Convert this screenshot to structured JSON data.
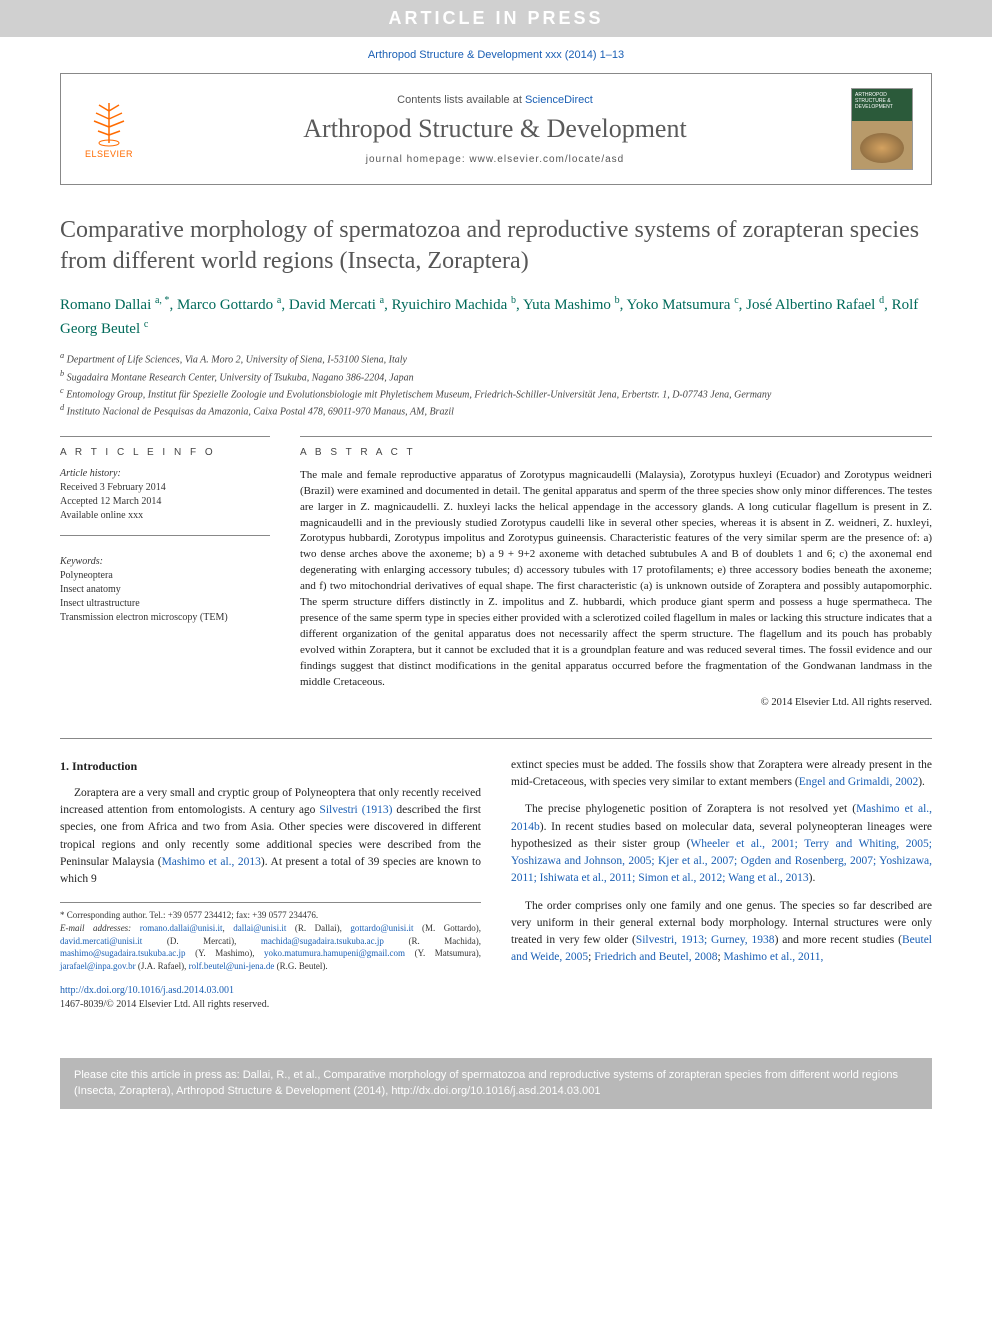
{
  "banner": {
    "article_in_press": "ARTICLE IN PRESS"
  },
  "citation_top": "Arthropod Structure & Development xxx (2014) 1–13",
  "header": {
    "contents_prefix": "Contents lists available at ",
    "contents_link": "ScienceDirect",
    "journal_name": "Arthropod Structure & Development",
    "homepage_prefix": "journal homepage: ",
    "homepage_url": "www.elsevier.com/locate/asd",
    "elsevier_label": "ELSEVIER",
    "cover_line1": "ARTHROPOD",
    "cover_line2": "STRUCTURE &",
    "cover_line3": "DEVELOPMENT"
  },
  "title": "Comparative morphology of spermatozoa and reproductive systems of zorapteran species from different world regions (Insecta, Zoraptera)",
  "authors_html": "Romano Dallai <sup>a, *</sup>, Marco Gottardo <sup>a</sup>, David Mercati <sup>a</sup>, Ryuichiro Machida <sup>b</sup>, Yuta Mashimo <sup>b</sup>, Yoko Matsumura <sup>c</sup>, José Albertino Rafael <sup>d</sup>, Rolf Georg Beutel <sup>c</sup>",
  "affiliations": {
    "a": "Department of Life Sciences, Via A. Moro 2, University of Siena, I-53100 Siena, Italy",
    "b": "Sugadaira Montane Research Center, University of Tsukuba, Nagano 386-2204, Japan",
    "c": "Entomology Group, Institut für Spezielle Zoologie und Evolutionsbiologie mit Phyletischem Museum, Friedrich-Schiller-Universität Jena, Erbertstr. 1, D-07743 Jena, Germany",
    "d": "Instituto Nacional de Pesquisas da Amazonia, Caixa Postal 478, 69011-970 Manaus, AM, Brazil"
  },
  "article_info": {
    "heading": "A R T I C L E   I N F O",
    "history_label": "Article history:",
    "received": "Received 3 February 2014",
    "accepted": "Accepted 12 March 2014",
    "available": "Available online xxx",
    "keywords_label": "Keywords:",
    "keywords": [
      "Polyneoptera",
      "Insect anatomy",
      "Insect ultrastructure",
      "Transmission electron microscopy (TEM)"
    ]
  },
  "abstract": {
    "heading": "A B S T R A C T",
    "text": "The male and female reproductive apparatus of Zorotypus magnicaudelli (Malaysia), Zorotypus huxleyi (Ecuador) and Zorotypus weidneri (Brazil) were examined and documented in detail. The genital apparatus and sperm of the three species show only minor differences. The testes are larger in Z. magnicaudelli. Z. huxleyi lacks the helical appendage in the accessory glands. A long cuticular flagellum is present in Z. magnicaudelli and in the previously studied Zorotypus caudelli like in several other species, whereas it is absent in Z. weidneri, Z. huxleyi, Zorotypus hubbardi, Zorotypus impolitus and Zorotypus guineensis. Characteristic features of the very similar sperm are the presence of: a) two dense arches above the axoneme; b) a 9 + 9+2 axoneme with detached subtubules A and B of doublets 1 and 6; c) the axonemal end degenerating with enlarging accessory tubules; d) accessory tubules with 17 protofilaments; e) three accessory bodies beneath the axoneme; and f) two mitochondrial derivatives of equal shape. The first characteristic (a) is unknown outside of Zoraptera and possibly autapomorphic. The sperm structure differs distinctly in Z. impolitus and Z. hubbardi, which produce giant sperm and possess a huge spermatheca. The presence of the same sperm type in species either provided with a sclerotized coiled flagellum in males or lacking this structure indicates that a different organization of the genital apparatus does not necessarily affect the sperm structure. The flagellum and its pouch has probably evolved within Zoraptera, but it cannot be excluded that it is a groundplan feature and was reduced several times. The fossil evidence and our findings suggest that distinct modifications in the genital apparatus occurred before the fragmentation of the Gondwanan landmass in the middle Cretaceous.",
    "copyright": "© 2014 Elsevier Ltd. All rights reserved."
  },
  "body": {
    "section_heading": "1. Introduction",
    "col1_p1_a": "Zoraptera are a very small and cryptic group of Polyneoptera that only recently received increased attention from entomologists. A century ago ",
    "col1_p1_ref1": "Silvestri (1913)",
    "col1_p1_b": " described the first species, one from Africa and two from Asia. Other species were discovered in different tropical regions and only recently some additional species were described from the Peninsular Malaysia (",
    "col1_p1_ref2": "Mashimo et al., 2013",
    "col1_p1_c": "). At present a total of 39 species are known to which 9",
    "col2_p1_a": "extinct species must be added. The fossils show that Zoraptera were already present in the mid-Cretaceous, with species very similar to extant members (",
    "col2_p1_ref1": "Engel and Grimaldi, 2002",
    "col2_p1_b": ").",
    "col2_p2_a": "The precise phylogenetic position of Zoraptera is not resolved yet (",
    "col2_p2_ref1": "Mashimo et al., 2014b",
    "col2_p2_b": "). In recent studies based on molecular data, several polyneopteran lineages were hypothesized as their sister group (",
    "col2_p2_ref2": "Wheeler et al., 2001; Terry and Whiting, 2005; Yoshizawa and Johnson, 2005; Kjer et al., 2007; Ogden and Rosenberg, 2007; Yoshizawa, 2011; Ishiwata et al., 2011; Simon et al., 2012; Wang et al., 2013",
    "col2_p2_c": ").",
    "col2_p3_a": "The order comprises only one family and one genus. The species so far described are very uniform in their general external body morphology. Internal structures were only treated in very few older (",
    "col2_p3_ref1": "Silvestri, 1913; Gurney, 1938",
    "col2_p3_b": ") and more recent studies (",
    "col2_p3_ref2": "Beutel and Weide, 2005",
    "col2_p3_c": "; ",
    "col2_p3_ref3": "Friedrich and Beutel, 2008",
    "col2_p3_d": "; ",
    "col2_p3_ref4": "Mashimo et al., 2011,"
  },
  "footnotes": {
    "corresponding": "* Corresponding author. Tel.: +39 0577 234412; fax: +39 0577 234476.",
    "emails_label": "E-mail addresses: ",
    "emails": "romano.dallai@unisi.it, dallai@unisi.it (R. Dallai), gottardo@unisi.it (M. Gottardo), david.mercati@unisi.it (D. Mercati), machida@sugadaira.tsukuba.ac.jp (R. Machida), mashimo@sugadaira.tsukuba.ac.jp (Y. Mashimo), yoko.matumura.hamupeni@gmail.com (Y. Matsumura), jarafael@inpa.gov.br (J.A. Rafael), rolf.beutel@uni-jena.de (R.G. Beutel)."
  },
  "doi": {
    "url": "http://dx.doi.org/10.1016/j.asd.2014.03.001",
    "issn": "1467-8039/© 2014 Elsevier Ltd. All rights reserved."
  },
  "bottom_box": "Please cite this article in press as: Dallai, R., et al., Comparative morphology of spermatozoa and reproductive systems of zorapteran species from different world regions (Insecta, Zoraptera), Arthropod Structure & Development (2014), http://dx.doi.org/10.1016/j.asd.2014.03.001",
  "colors": {
    "link": "#1a5fb4",
    "author": "#006a5a",
    "elsevier_orange": "#ff6b00",
    "banner_bg": "#d0d0d0",
    "border": "#888888"
  }
}
